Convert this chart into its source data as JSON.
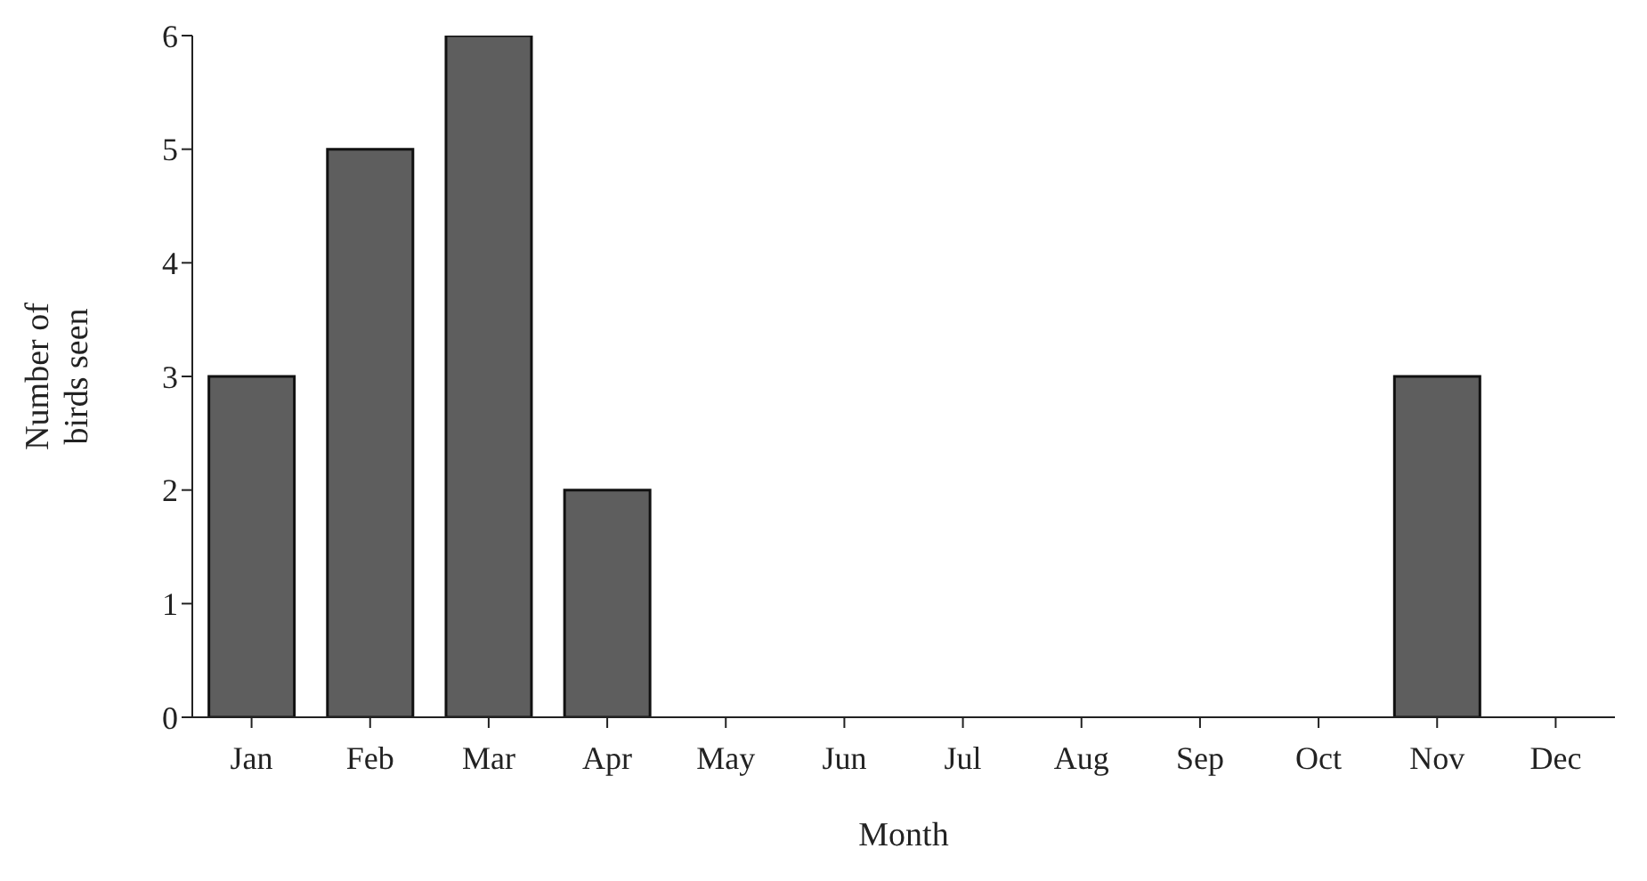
{
  "chart_data": {
    "type": "bar",
    "xlabel": "Month",
    "ylabel": "Number of birds seen",
    "categories": [
      "Jan",
      "Feb",
      "Mar",
      "Apr",
      "May",
      "Jun",
      "Jul",
      "Aug",
      "Sep",
      "Oct",
      "Nov",
      "Dec"
    ],
    "values": [
      3,
      5,
      6,
      2,
      0,
      0,
      0,
      0,
      0,
      0,
      3,
      0
    ],
    "color": "#5e5e5e",
    "ylim": [
      0,
      6
    ],
    "yticks": [
      0,
      1,
      2,
      3,
      4,
      5,
      6
    ],
    "grid": false
  }
}
